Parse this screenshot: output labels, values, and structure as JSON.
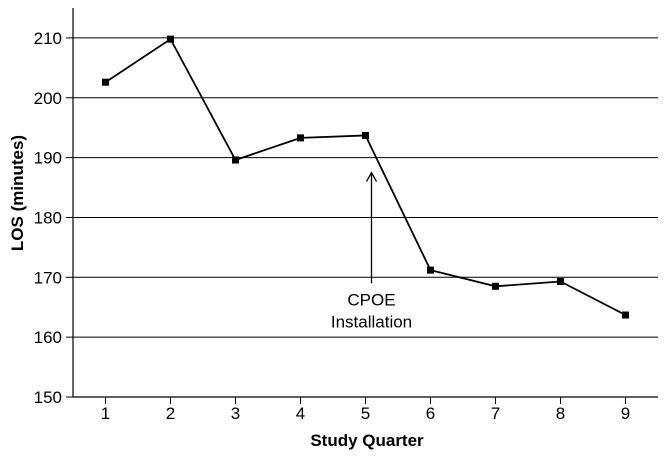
{
  "chart_data": {
    "type": "line",
    "title": "",
    "xlabel": "Study Quarter",
    "ylabel": "LOS (minutes)",
    "x": [
      1,
      2,
      3,
      4,
      5,
      6,
      7,
      8,
      9
    ],
    "x_tick_labels": [
      "1",
      "2",
      "3",
      "4",
      "5",
      "6",
      "7",
      "8",
      "9"
    ],
    "xlim": [
      0.5,
      9.5
    ],
    "ylim": [
      150,
      215
    ],
    "y_ticks": [
      150,
      160,
      170,
      180,
      190,
      200,
      210
    ],
    "y_tick_labels": [
      "150",
      "160",
      "170",
      "180",
      "190",
      "200",
      "210"
    ],
    "grid": "horizontal",
    "series": [
      {
        "values": [
          202.6,
          209.8,
          189.6,
          193.3,
          193.7,
          171.2,
          168.5,
          169.3,
          163.7
        ]
      }
    ],
    "annotation": {
      "lines": [
        "CPOE",
        "Installation"
      ],
      "x": 5,
      "arrow_from_y": 169,
      "arrow_to_y": 187.5
    }
  }
}
